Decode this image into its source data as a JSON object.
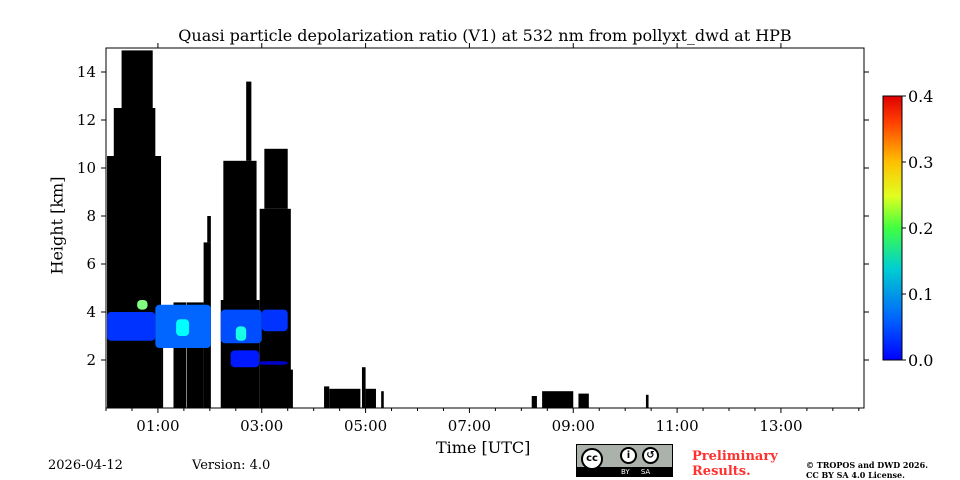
{
  "chart_data": {
    "type": "heatmap",
    "title": "Quasi particle depolarization ratio (V1) at 532 nm from pollyxt_dwd at HPB",
    "xlabel": "Time [UTC]",
    "ylabel": "Height [km]",
    "xlim_hours": [
      0,
      14.6
    ],
    "ylim": [
      0,
      15
    ],
    "x_ticks": [
      {
        "v": 1,
        "label": "01:00"
      },
      {
        "v": 3,
        "label": "03:00"
      },
      {
        "v": 5,
        "label": "05:00"
      },
      {
        "v": 7,
        "label": "07:00"
      },
      {
        "v": 9,
        "label": "09:00"
      },
      {
        "v": 11,
        "label": "11:00"
      },
      {
        "v": 13,
        "label": "13:00"
      }
    ],
    "y_ticks": [
      {
        "v": 2,
        "label": "2"
      },
      {
        "v": 4,
        "label": "4"
      },
      {
        "v": 6,
        "label": "6"
      },
      {
        "v": 8,
        "label": "8"
      },
      {
        "v": 10,
        "label": "10"
      },
      {
        "v": 12,
        "label": "12"
      },
      {
        "v": 14,
        "label": "14"
      }
    ],
    "colorbar": {
      "range": [
        0,
        0.4
      ],
      "ticks": [
        "0.0",
        "0.1",
        "0.2",
        "0.3",
        "0.4"
      ],
      "colormap": "jet"
    },
    "cloud_regions_black": [
      [
        0.02,
        1.06,
        0,
        10.5
      ],
      [
        0.15,
        0.95,
        10.5,
        12.5
      ],
      [
        0.3,
        0.9,
        12.5,
        14.9
      ],
      [
        1.06,
        1.1,
        0,
        4
      ],
      [
        1.3,
        1.55,
        0,
        4.4
      ],
      [
        1.56,
        1.88,
        0,
        4.4
      ],
      [
        1.88,
        2.02,
        0,
        6.9
      ],
      [
        1.95,
        2.02,
        6.9,
        8
      ],
      [
        2.21,
        2.96,
        0,
        4.5
      ],
      [
        2.26,
        2.9,
        4.5,
        10.3
      ],
      [
        2.7,
        2.8,
        10.3,
        13.6
      ],
      [
        2.96,
        3.56,
        0,
        8.3
      ],
      [
        3.05,
        3.5,
        8.3,
        10.8
      ],
      [
        3.45,
        3.6,
        0,
        1.6
      ],
      [
        4.2,
        4.3,
        0,
        0.9
      ],
      [
        4.3,
        4.9,
        0,
        0.8
      ],
      [
        4.93,
        5.0,
        0,
        1.7
      ],
      [
        5.0,
        5.2,
        0,
        0.8
      ],
      [
        5.3,
        5.35,
        0,
        0.7
      ],
      [
        8.2,
        8.3,
        0,
        0.5
      ],
      [
        8.4,
        9.0,
        0,
        0.7
      ],
      [
        9.1,
        9.3,
        0,
        0.6
      ],
      [
        10.4,
        10.45,
        0,
        0.55
      ]
    ],
    "aerosol_regions": [
      {
        "x": [
          0.02,
          0.95
        ],
        "y": [
          2.8,
          4.0
        ],
        "value": 0.07
      },
      {
        "x": [
          0.95,
          2.02
        ],
        "y": [
          2.5,
          4.3
        ],
        "value": 0.09
      },
      {
        "x": [
          1.35,
          1.6
        ],
        "y": [
          3.0,
          3.7
        ],
        "value": 0.15
      },
      {
        "x": [
          2.21,
          3.0
        ],
        "y": [
          2.7,
          4.1
        ],
        "value": 0.08
      },
      {
        "x": [
          2.5,
          2.7
        ],
        "y": [
          2.8,
          3.4
        ],
        "value": 0.16
      },
      {
        "x": [
          3.0,
          3.5
        ],
        "y": [
          3.2,
          4.1
        ],
        "value": 0.07
      },
      {
        "x": [
          2.4,
          2.95
        ],
        "y": [
          1.7,
          2.4
        ],
        "value": 0.06
      },
      {
        "x": [
          2.95,
          3.5
        ],
        "y": [
          1.8,
          1.95
        ],
        "value": 0.03
      },
      {
        "x": [
          0.6,
          0.8
        ],
        "y": [
          4.1,
          4.5
        ],
        "value": 0.2
      }
    ]
  },
  "footer": {
    "date": "2026-04-12",
    "version": "Version: 4.0",
    "preliminary_1": "Preliminary",
    "preliminary_2": "Results.",
    "copyright_1": "© TROPOS and DWD 2026.",
    "copyright_2": "CC BY SA 4.0 License.",
    "license_logo": "cc by sa"
  }
}
